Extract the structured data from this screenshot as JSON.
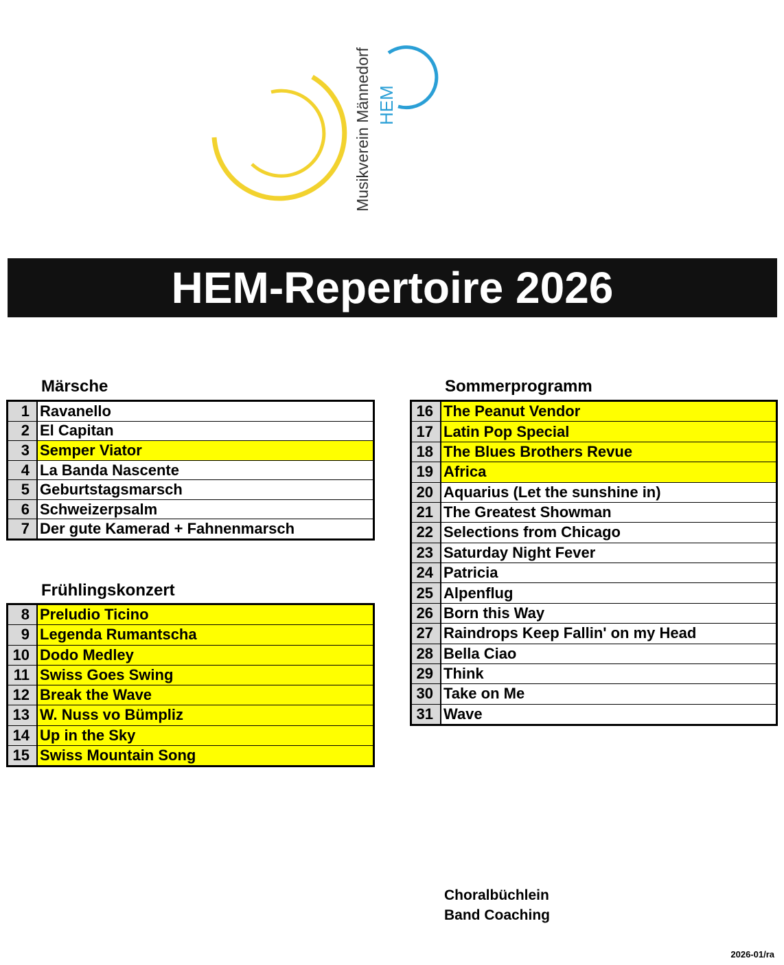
{
  "logo": {
    "club": "Musikverein Männedorf",
    "short": "HEM"
  },
  "title": "HEM-Repertoire 2026",
  "sections": [
    {
      "heading": "Märsche",
      "rows": [
        {
          "number": 1,
          "title": "Ravanello",
          "highlighted": false
        },
        {
          "number": 2,
          "title": "El Capitan",
          "highlighted": false
        },
        {
          "number": 3,
          "title": "Semper Viator",
          "highlighted": true
        },
        {
          "number": 4,
          "title": "La Banda Nascente",
          "highlighted": false
        },
        {
          "number": 5,
          "title": "Geburtstagsmarsch",
          "highlighted": false
        },
        {
          "number": 6,
          "title": "Schweizerpsalm",
          "highlighted": false
        },
        {
          "number": 7,
          "title": "Der gute Kamerad + Fahnenmarsch",
          "highlighted": false
        }
      ]
    },
    {
      "heading": "Frühlingskonzert",
      "rows": [
        {
          "number": 8,
          "title": "Preludio Ticino",
          "highlighted": true
        },
        {
          "number": 9,
          "title": "Legenda Rumantscha",
          "highlighted": true
        },
        {
          "number": 10,
          "title": "Dodo Medley",
          "highlighted": true
        },
        {
          "number": 11,
          "title": "Swiss Goes Swing",
          "highlighted": true
        },
        {
          "number": 12,
          "title": "Break the Wave",
          "highlighted": true
        },
        {
          "number": 13,
          "title": "W. Nuss vo Bümpliz",
          "highlighted": true
        },
        {
          "number": 14,
          "title": "Up in the Sky",
          "highlighted": true
        },
        {
          "number": 15,
          "title": "Swiss Mountain Song",
          "highlighted": true
        }
      ]
    },
    {
      "heading": "Sommerprogramm",
      "rows": [
        {
          "number": 16,
          "title": "The Peanut Vendor",
          "highlighted": true
        },
        {
          "number": 17,
          "title": "Latin Pop Special",
          "highlighted": true
        },
        {
          "number": 18,
          "title": "The Blues Brothers Revue",
          "highlighted": true
        },
        {
          "number": 19,
          "title": "Africa",
          "highlighted": true
        },
        {
          "number": 20,
          "title": "Aquarius (Let the sunshine in)",
          "highlighted": false
        },
        {
          "number": 21,
          "title": "The Greatest Showman",
          "highlighted": false
        },
        {
          "number": 22,
          "title": "Selections from Chicago",
          "highlighted": false
        },
        {
          "number": 23,
          "title": "Saturday Night Fever",
          "highlighted": false
        },
        {
          "number": 24,
          "title": "Patricia",
          "highlighted": false
        },
        {
          "number": 25,
          "title": "Alpenflug",
          "highlighted": false
        },
        {
          "number": 26,
          "title": "Born this Way",
          "highlighted": false
        },
        {
          "number": 27,
          "title": "Raindrops Keep Fallin' on my Head",
          "highlighted": false
        },
        {
          "number": 28,
          "title": "Bella Ciao",
          "highlighted": false
        },
        {
          "number": 29,
          "title": "Think",
          "highlighted": false
        },
        {
          "number": 30,
          "title": "Take on Me",
          "highlighted": false
        },
        {
          "number": 31,
          "title": "Wave",
          "highlighted": false
        }
      ]
    }
  ],
  "footer": {
    "notes": [
      "Choralbüchlein",
      "Band Coaching"
    ],
    "version": "2026-01/ra"
  }
}
